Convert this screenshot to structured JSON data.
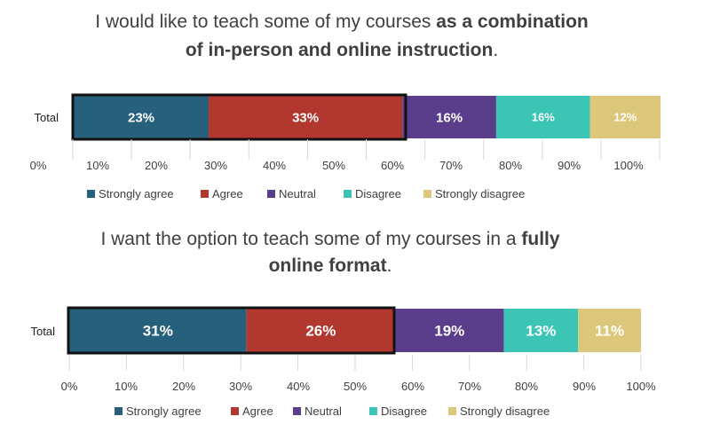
{
  "colors": {
    "Strongly agree": "#27607d",
    "Agree": "#b2372e",
    "Neutral": "#5a3e8c",
    "Disagree": "#3cc5b4",
    "Strongly disagree": "#dcc77a",
    "highlight_border": "#111111"
  },
  "chart_data": [
    {
      "type": "bar",
      "orientation": "horizontal-stacked",
      "title_segments": [
        [
          {
            "text": "I would like to teach some of my courses ",
            "bold": false
          },
          {
            "text": "as a combination",
            "bold": true
          }
        ],
        [
          {
            "text": "of in-person and online instruction",
            "bold": true
          },
          {
            "text": ".",
            "bold": false
          }
        ]
      ],
      "categories": [
        "Total"
      ],
      "series": [
        {
          "name": "Strongly agree",
          "values": [
            23
          ]
        },
        {
          "name": "Agree",
          "values": [
            33
          ]
        },
        {
          "name": "Neutral",
          "values": [
            16
          ]
        },
        {
          "name": "Disagree",
          "values": [
            16
          ]
        },
        {
          "name": "Strongly disagree",
          "values": [
            12
          ]
        }
      ],
      "value_labels": [
        "23%",
        "33%",
        "16%",
        "16%",
        "12%"
      ],
      "x_ticks": [
        "0%",
        "10%",
        "20%",
        "30%",
        "40%",
        "50%",
        "60%",
        "70%",
        "80%",
        "90%",
        "100%"
      ],
      "xlim": [
        0,
        100
      ],
      "highlighted_series": [
        "Strongly agree",
        "Agree"
      ],
      "legend": [
        "Strongly agree",
        "Agree",
        "Neutral",
        "Disagree",
        "Strongly disagree"
      ],
      "legend_position": "bottom",
      "grid": false
    },
    {
      "type": "bar",
      "orientation": "horizontal-stacked",
      "title_segments": [
        [
          {
            "text": "I want the option to teach some of my courses in a ",
            "bold": false
          },
          {
            "text": "fully",
            "bold": true
          }
        ],
        [
          {
            "text": "online format",
            "bold": true
          },
          {
            "text": ".",
            "bold": false
          }
        ]
      ],
      "categories": [
        "Total"
      ],
      "series": [
        {
          "name": "Strongly agree",
          "values": [
            31
          ]
        },
        {
          "name": "Agree",
          "values": [
            26
          ]
        },
        {
          "name": "Neutral",
          "values": [
            19
          ]
        },
        {
          "name": "Disagree",
          "values": [
            13
          ]
        },
        {
          "name": "Strongly disagree",
          "values": [
            11
          ]
        }
      ],
      "value_labels": [
        "31%",
        "26%",
        "19%",
        "13%",
        "11%"
      ],
      "x_ticks": [
        "0%",
        "10%",
        "20%",
        "30%",
        "40%",
        "50%",
        "60%",
        "70%",
        "80%",
        "90%",
        "100%"
      ],
      "xlim": [
        0,
        100
      ],
      "highlighted_series": [
        "Strongly agree",
        "Agree"
      ],
      "legend": [
        "Strongly agree",
        "Agree",
        "Neutral",
        "Disagree",
        "Strongly disagree"
      ],
      "legend_position": "bottom",
      "grid": false
    }
  ]
}
